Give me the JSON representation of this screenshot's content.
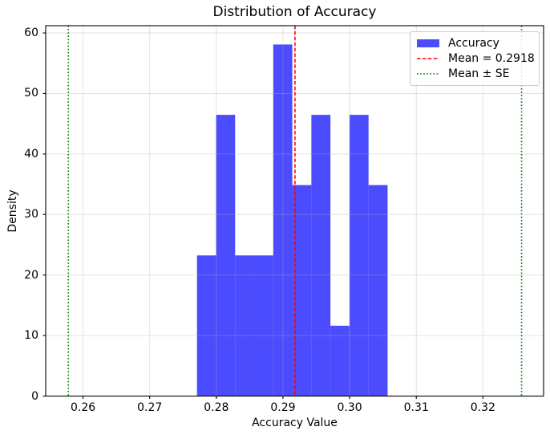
{
  "chart_data": {
    "type": "bar",
    "subtype": "histogram",
    "title": "Distribution of Accuracy",
    "xlabel": "Accuracy Value",
    "ylabel": "Density",
    "xlim": [
      0.2544,
      0.3291
    ],
    "ylim": [
      0,
      61.2
    ],
    "grid": true,
    "legend_position": "upper right",
    "bin_edges": [
      0.2771,
      0.27996,
      0.28282,
      0.28568,
      0.28854,
      0.2914,
      0.29426,
      0.29712,
      0.29998,
      0.30284,
      0.3057
    ],
    "densities": [
      23.24,
      46.47,
      23.24,
      23.24,
      58.09,
      34.86,
      46.47,
      11.62,
      46.47,
      34.86
    ],
    "mean_line": 0.2918,
    "se_lines": [
      0.2578,
      0.3258
    ],
    "xticks": [
      {
        "value": 0.26,
        "label": "0.26"
      },
      {
        "value": 0.27,
        "label": "0.27"
      },
      {
        "value": 0.28,
        "label": "0.28"
      },
      {
        "value": 0.29,
        "label": "0.29"
      },
      {
        "value": 0.3,
        "label": "0.30"
      },
      {
        "value": 0.31,
        "label": "0.31"
      },
      {
        "value": 0.32,
        "label": "0.32"
      }
    ],
    "yticks": [
      {
        "value": 0,
        "label": "0"
      },
      {
        "value": 10,
        "label": "10"
      },
      {
        "value": 20,
        "label": "20"
      },
      {
        "value": 30,
        "label": "30"
      },
      {
        "value": 40,
        "label": "40"
      },
      {
        "value": 50,
        "label": "50"
      },
      {
        "value": 60,
        "label": "60"
      }
    ]
  },
  "legend": {
    "entries": [
      {
        "label": "Accuracy",
        "swatch": "blue-patch"
      },
      {
        "label": "Mean = 0.2918",
        "swatch": "red-dashed-line"
      },
      {
        "label": "Mean ± SE",
        "swatch": "green-dotted-line"
      }
    ]
  },
  "colors": {
    "bar_fill": "rgba(0,0,255,0.7)",
    "mean_line": "#ff0000",
    "se_line": "#008000",
    "grid": "rgba(176,176,176,0.35)",
    "spine": "#000000",
    "text": "#000000"
  }
}
